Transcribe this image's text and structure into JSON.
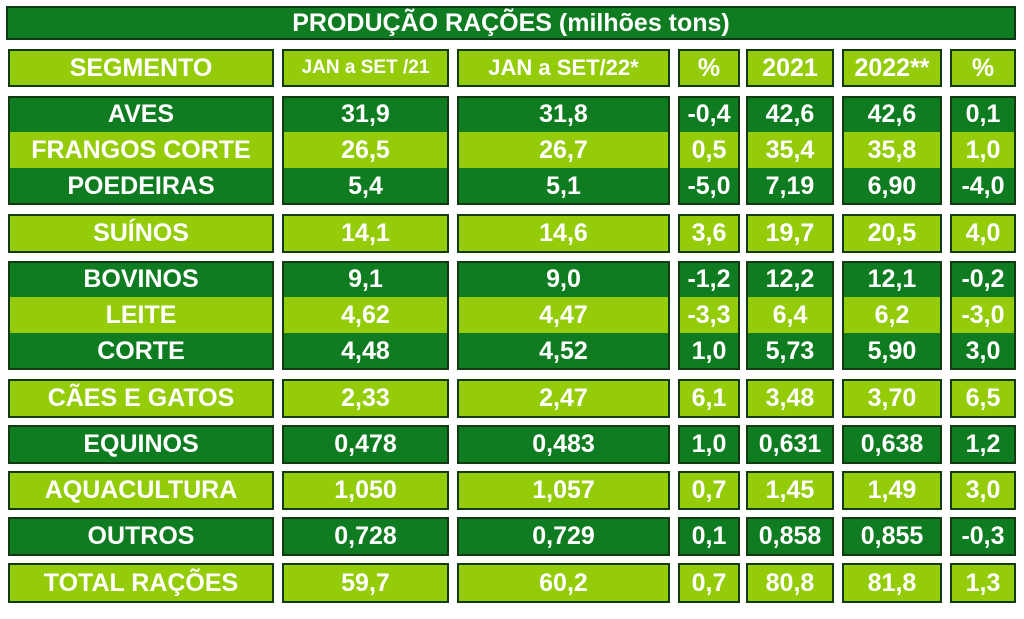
{
  "title": "PRODUÇÃO RAÇÕES (milhões tons)",
  "chart_data": {
    "type": "table",
    "title": "PRODUÇÃO RAÇÕES (milhões tons)",
    "columns": [
      "SEGMENTO",
      "JAN a SET /21",
      "JAN a SET/22*",
      "%",
      "2021",
      "2022**",
      "%"
    ],
    "rows": [
      {
        "segment": "AVES",
        "values": [
          "31,9",
          "31,8",
          "-0,4",
          "42,6",
          "42,6",
          "0,1"
        ]
      },
      {
        "segment": "FRANGOS CORTE",
        "values": [
          "26,5",
          "26,7",
          "0,5",
          "35,4",
          "35,8",
          "1,0"
        ]
      },
      {
        "segment": "POEDEIRAS",
        "values": [
          "5,4",
          "5,1",
          "-5,0",
          "7,19",
          "6,90",
          "-4,0"
        ]
      },
      {
        "segment": "SUÍNOS",
        "values": [
          "14,1",
          "14,6",
          "3,6",
          "19,7",
          "20,5",
          "4,0"
        ]
      },
      {
        "segment": "BOVINOS",
        "values": [
          "9,1",
          "9,0",
          "-1,2",
          "12,2",
          "12,1",
          "-0,2"
        ]
      },
      {
        "segment": "LEITE",
        "values": [
          "4,62",
          "4,47",
          "-3,3",
          "6,4",
          "6,2",
          "-3,0"
        ]
      },
      {
        "segment": "CORTE",
        "values": [
          "4,48",
          "4,52",
          "1,0",
          "5,73",
          "5,90",
          "3,0"
        ]
      },
      {
        "segment": "CÃES E GATOS",
        "values": [
          "2,33",
          "2,47",
          "6,1",
          "3,48",
          "3,70",
          "6,5"
        ]
      },
      {
        "segment": "EQUINOS",
        "values": [
          "0,478",
          "0,483",
          "1,0",
          "0,631",
          "0,638",
          "1,2"
        ]
      },
      {
        "segment": "AQUACULTURA",
        "values": [
          "1,050",
          "1,057",
          "0,7",
          "1,45",
          "1,49",
          "3,0"
        ]
      },
      {
        "segment": "OUTROS",
        "values": [
          "0,728",
          "0,729",
          "0,1",
          "0,858",
          "0,855",
          "-0,3"
        ]
      },
      {
        "segment": "TOTAL RAÇÕES",
        "values": [
          "59,7",
          "60,2",
          "0,7",
          "80,8",
          "81,8",
          "1,3"
        ]
      }
    ]
  },
  "colors": {
    "dark_green": "#107c21",
    "light_green": "#94cc0a",
    "border": "#123b12",
    "text": "#ffffff"
  }
}
